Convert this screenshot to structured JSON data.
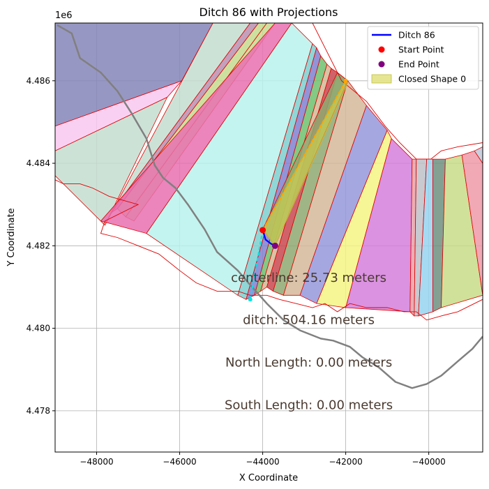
{
  "chart_data": {
    "type": "line",
    "title": "Ditch 86 with Projections",
    "xlabel": "X Coordinate",
    "ylabel": "Y Coordinate",
    "y_offset_label": "1e6",
    "xlim": [
      -49000,
      -38700
    ],
    "ylim": [
      4.477,
      4.4874
    ],
    "xticks": [
      -48000,
      -46000,
      -44000,
      -42000,
      -40000
    ],
    "xtick_labels": [
      "−48000",
      "−46000",
      "−44000",
      "−42000",
      "−40000"
    ],
    "yticks": [
      4.478,
      4.48,
      4.482,
      4.484,
      4.486
    ],
    "ytick_labels": [
      "4.478",
      "4.480",
      "4.482",
      "4.484",
      "4.486"
    ],
    "grid": true,
    "legend_position": "top-right",
    "legend": [
      {
        "label": "Ditch 86",
        "kind": "line",
        "color": "#0000ff"
      },
      {
        "label": "Start Point",
        "kind": "marker",
        "color": "#ff0000"
      },
      {
        "label": "End Point",
        "kind": "marker",
        "color": "#800080"
      },
      {
        "label": "Closed Shape 0",
        "kind": "patch",
        "color": "#d4d44a"
      }
    ],
    "annotations": [
      {
        "text": "centerline: 25.73 meters",
        "x": -44000,
        "y": 4.48113
      },
      {
        "text": "ditch: 504.16 meters",
        "x": -44000,
        "y": 4.4801
      },
      {
        "text": "North Length: 0.00 meters",
        "x": -44000,
        "y": 4.47907
      },
      {
        "text": "South Length: 0.00 meters",
        "x": -44000,
        "y": 4.47804
      }
    ],
    "annotation_color": "#4a3a30",
    "ditch": {
      "name": "Ditch 86",
      "color": "#0000ff",
      "x": [
        -44000,
        -43930,
        -43800,
        -43700
      ],
      "y": [
        4.48238,
        4.48215,
        4.48205,
        4.482
      ]
    },
    "start_point": {
      "name": "Start Point",
      "x": -44000,
      "y": 4.48238,
      "color": "#ff0000"
    },
    "end_point": {
      "name": "End Point",
      "x": -43700,
      "y": 4.482,
      "color": "#800080"
    },
    "projections": [
      {
        "color": "#00e5e5",
        "x": [
          -44000,
          -44300
        ],
        "y": [
          4.48238,
          4.4807
        ]
      },
      {
        "color": "#ffa500",
        "x": [
          -44000,
          -42000
        ],
        "y": [
          4.48238,
          4.486
        ]
      }
    ],
    "centerline": {
      "color": "#808080",
      "x": [
        -48950,
        -48600,
        -48400,
        -47900,
        -47500,
        -47150,
        -46800,
        -46600,
        -46400,
        -46100,
        -45800,
        -45400,
        -45100,
        -44600,
        -44300,
        -43900,
        -43500,
        -43100,
        -42600,
        -42300,
        -41900,
        -41600,
        -41200,
        -40800,
        -40400,
        -40050,
        -39700,
        -39300,
        -38950,
        -38700
      ],
      "y": [
        4.48735,
        4.48715,
        4.48655,
        4.4862,
        4.48575,
        4.4852,
        4.4846,
        4.48395,
        4.48365,
        4.4834,
        4.483,
        4.4824,
        4.48185,
        4.4814,
        4.48105,
        4.4806,
        4.4802,
        4.47995,
        4.47975,
        4.4797,
        4.47955,
        4.4793,
        4.47905,
        4.4787,
        4.47855,
        4.47865,
        4.47885,
        4.4792,
        4.4795,
        4.4798
      ]
    },
    "strips": [
      {
        "color": "#8585b8",
        "pts": [
          [
            -49000,
            4.4874
          ],
          [
            -45200,
            4.4874
          ],
          [
            -45950,
            4.486
          ],
          [
            -49000,
            4.4849
          ]
        ]
      },
      {
        "color": "#f9c8f0",
        "pts": [
          [
            -49000,
            4.4849
          ],
          [
            -45950,
            4.486
          ],
          [
            -46300,
            4.4856
          ],
          [
            -49000,
            4.4843
          ]
        ]
      },
      {
        "color": "#c4ddd0",
        "pts": [
          [
            -49000,
            4.4843
          ],
          [
            -46300,
            4.4856
          ],
          [
            -47800,
            4.4825
          ],
          [
            -49000,
            4.4837
          ]
        ]
      },
      {
        "color": "#c4ddd0",
        "pts": [
          [
            -45200,
            4.4874
          ],
          [
            -44300,
            4.4874
          ],
          [
            -47650,
            4.4828
          ],
          [
            -47800,
            4.4825
          ]
        ]
      },
      {
        "color": "#b98fb0",
        "pts": [
          [
            -44300,
            4.4874
          ],
          [
            -44100,
            4.4874
          ],
          [
            -47500,
            4.4829
          ],
          [
            -47650,
            4.4828
          ]
        ]
      },
      {
        "color": "#c6da8e",
        "pts": [
          [
            -44100,
            4.4874
          ],
          [
            -43900,
            4.4874
          ],
          [
            -47300,
            4.4827
          ],
          [
            -47500,
            4.4829
          ]
        ]
      },
      {
        "color": "#c6da8e",
        "pts": [
          [
            -43900,
            4.4874
          ],
          [
            -43700,
            4.4874
          ],
          [
            -47100,
            4.4826
          ],
          [
            -47300,
            4.4827
          ]
        ]
      },
      {
        "color": "#e870b0",
        "pts": [
          [
            -43700,
            4.4874
          ],
          [
            -43300,
            4.4874
          ],
          [
            -46800,
            4.4823
          ],
          [
            -47900,
            4.4826
          ]
        ]
      },
      {
        "color": "#b9f2ec",
        "pts": [
          [
            -43300,
            4.4874
          ],
          [
            -42800,
            4.4869
          ],
          [
            -44600,
            4.4808
          ],
          [
            -46800,
            4.4823
          ]
        ]
      },
      {
        "color": "#7ccfcf",
        "pts": [
          [
            -42800,
            4.4869
          ],
          [
            -42700,
            4.4868
          ],
          [
            -44400,
            4.4807
          ],
          [
            -44600,
            4.4808
          ]
        ]
      },
      {
        "color": "#8080d0",
        "pts": [
          [
            -42700,
            4.4868
          ],
          [
            -42600,
            4.4866
          ],
          [
            -44200,
            4.4808
          ],
          [
            -44400,
            4.4807
          ]
        ]
      },
      {
        "color": "#6fbf6f",
        "pts": [
          [
            -42600,
            4.4866
          ],
          [
            -42450,
            4.4864
          ],
          [
            -44050,
            4.4809
          ],
          [
            -44200,
            4.4808
          ]
        ]
      },
      {
        "color": "#d4b895",
        "pts": [
          [
            -42450,
            4.4864
          ],
          [
            -42350,
            4.4863
          ],
          [
            -43900,
            4.481
          ],
          [
            -44050,
            4.4809
          ]
        ]
      },
      {
        "color": "#c84850",
        "pts": [
          [
            -42350,
            4.4863
          ],
          [
            -42200,
            4.4862
          ],
          [
            -43750,
            4.4809
          ],
          [
            -43900,
            4.481
          ]
        ]
      },
      {
        "color": "#8fa870",
        "pts": [
          [
            -42200,
            4.4862
          ],
          [
            -41950,
            4.486
          ],
          [
            -43500,
            4.4808
          ],
          [
            -43750,
            4.4809
          ]
        ]
      },
      {
        "color": "#d4b89a",
        "pts": [
          [
            -41950,
            4.486
          ],
          [
            -41500,
            4.4854
          ],
          [
            -43100,
            4.4808
          ],
          [
            -43500,
            4.4808
          ]
        ]
      },
      {
        "color": "#9598dc",
        "pts": [
          [
            -41500,
            4.4854
          ],
          [
            -41000,
            4.4848
          ],
          [
            -42700,
            4.4806
          ],
          [
            -43100,
            4.4808
          ]
        ]
      },
      {
        "color": "#f4f484",
        "pts": [
          [
            -41000,
            4.4848
          ],
          [
            -40900,
            4.4846
          ],
          [
            -42000,
            4.4805
          ],
          [
            -42700,
            4.4806
          ]
        ]
      },
      {
        "color": "#d47fdc",
        "pts": [
          [
            -40900,
            4.4846
          ],
          [
            -40400,
            4.4841
          ],
          [
            -40450,
            4.4804
          ],
          [
            -42000,
            4.4805
          ]
        ]
      },
      {
        "color": "#e8a0a8",
        "pts": [
          [
            -40400,
            4.4841
          ],
          [
            -40300,
            4.4841
          ],
          [
            -40350,
            4.4803
          ],
          [
            -40450,
            4.4804
          ]
        ]
      },
      {
        "color": "#c0c0c8",
        "pts": [
          [
            -40300,
            4.4841
          ],
          [
            -40050,
            4.4841
          ],
          [
            -40250,
            4.4803
          ],
          [
            -40350,
            4.4803
          ]
        ]
      },
      {
        "color": "#96d4f0",
        "pts": [
          [
            -40050,
            4.4841
          ],
          [
            -39900,
            4.4841
          ],
          [
            -39900,
            4.4804
          ],
          [
            -40250,
            4.4803
          ]
        ]
      },
      {
        "color": "#6f8f80",
        "pts": [
          [
            -39900,
            4.4841
          ],
          [
            -39600,
            4.4841
          ],
          [
            -39700,
            4.4805
          ],
          [
            -39900,
            4.4804
          ]
        ]
      },
      {
        "color": "#c8dc88",
        "pts": [
          [
            -39600,
            4.4841
          ],
          [
            -39200,
            4.4842
          ],
          [
            -38700,
            4.4808
          ],
          [
            -39700,
            4.4805
          ]
        ]
      },
      {
        "color": "#ee9aa8",
        "pts": [
          [
            -39200,
            4.4842
          ],
          [
            -38900,
            4.4843
          ],
          [
            -38700,
            4.484
          ],
          [
            -38700,
            4.4808
          ]
        ]
      },
      {
        "color": "#c0c8d8",
        "pts": [
          [
            -38900,
            4.4843
          ],
          [
            -38700,
            4.4844
          ],
          [
            -38700,
            4.484
          ]
        ]
      },
      {
        "color": "#8fa870",
        "pts": [
          [
            -44000,
            4.4824
          ],
          [
            -42200,
            4.4862
          ],
          [
            -41950,
            4.486
          ],
          [
            -43700,
            4.482
          ]
        ]
      }
    ],
    "closed_shape": {
      "name": "Closed Shape 0",
      "color": "#d4d44a",
      "pts": [
        [
          -44000,
          4.48238
        ],
        [
          -42000,
          4.486
        ],
        [
          -41950,
          4.48595
        ],
        [
          -43700,
          4.482
        ]
      ]
    },
    "outline": {
      "pts": [
        [
          -49000,
          4.4874
        ],
        [
          -42800,
          4.4874
        ],
        [
          -42100,
          4.486
        ],
        [
          -41500,
          4.4855
        ],
        [
          -41050,
          4.4849
        ],
        [
          -40700,
          4.4845
        ],
        [
          -40300,
          4.4841
        ],
        [
          -39950,
          4.4841
        ],
        [
          -39700,
          4.4843
        ],
        [
          -39300,
          4.4844
        ],
        [
          -38700,
          4.4845
        ],
        [
          -38700,
          4.4807
        ],
        [
          -39300,
          4.4804
        ],
        [
          -39700,
          4.4803
        ],
        [
          -40050,
          4.4802
        ],
        [
          -40300,
          4.4804
        ],
        [
          -40600,
          4.4804
        ],
        [
          -41000,
          4.4805
        ],
        [
          -41500,
          4.4805
        ],
        [
          -41900,
          4.4806
        ],
        [
          -42200,
          4.4804
        ],
        [
          -42500,
          4.4806
        ],
        [
          -42800,
          4.4805
        ],
        [
          -43200,
          4.4806
        ],
        [
          -43600,
          4.4807
        ],
        [
          -43900,
          4.4808
        ],
        [
          -44300,
          4.4808
        ],
        [
          -44600,
          4.4809
        ],
        [
          -45100,
          4.4809
        ],
        [
          -45600,
          4.4811
        ],
        [
          -46000,
          4.4814
        ],
        [
          -46500,
          4.4818
        ],
        [
          -47000,
          4.482
        ],
        [
          -47500,
          4.4822
        ],
        [
          -47900,
          4.4823
        ],
        [
          -47800,
          4.4826
        ],
        [
          -47200,
          4.4829
        ],
        [
          -47000,
          4.483
        ],
        [
          -47700,
          4.4832
        ],
        [
          -48100,
          4.4834
        ],
        [
          -48400,
          4.4835
        ],
        [
          -48800,
          4.4835
        ],
        [
          -49000,
          4.4836
        ]
      ]
    }
  }
}
